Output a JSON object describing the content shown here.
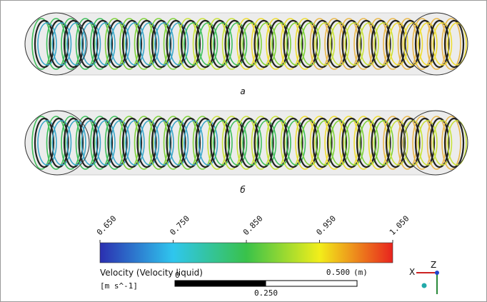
{
  "panels": [
    {
      "label": "a"
    },
    {
      "label": "б"
    }
  ],
  "colorbar": {
    "title": "Velocity (Velocity liquid)",
    "unit": "[m s^-1]",
    "ticks": [
      {
        "value": 0.65,
        "label": "0.650"
      },
      {
        "value": 0.75,
        "label": "0.750"
      },
      {
        "value": 0.85,
        "label": "0.850"
      },
      {
        "value": 0.95,
        "label": "0.950"
      },
      {
        "value": 1.05,
        "label": "1.050"
      }
    ]
  },
  "scale_bar": {
    "unit": "(m)",
    "ticks": [
      {
        "value": 0,
        "label": "0"
      },
      {
        "value": 0.25,
        "label": "0.250"
      },
      {
        "value": 0.5,
        "label": "0.500"
      }
    ]
  },
  "axes": {
    "x": "X",
    "z": "Z"
  }
}
